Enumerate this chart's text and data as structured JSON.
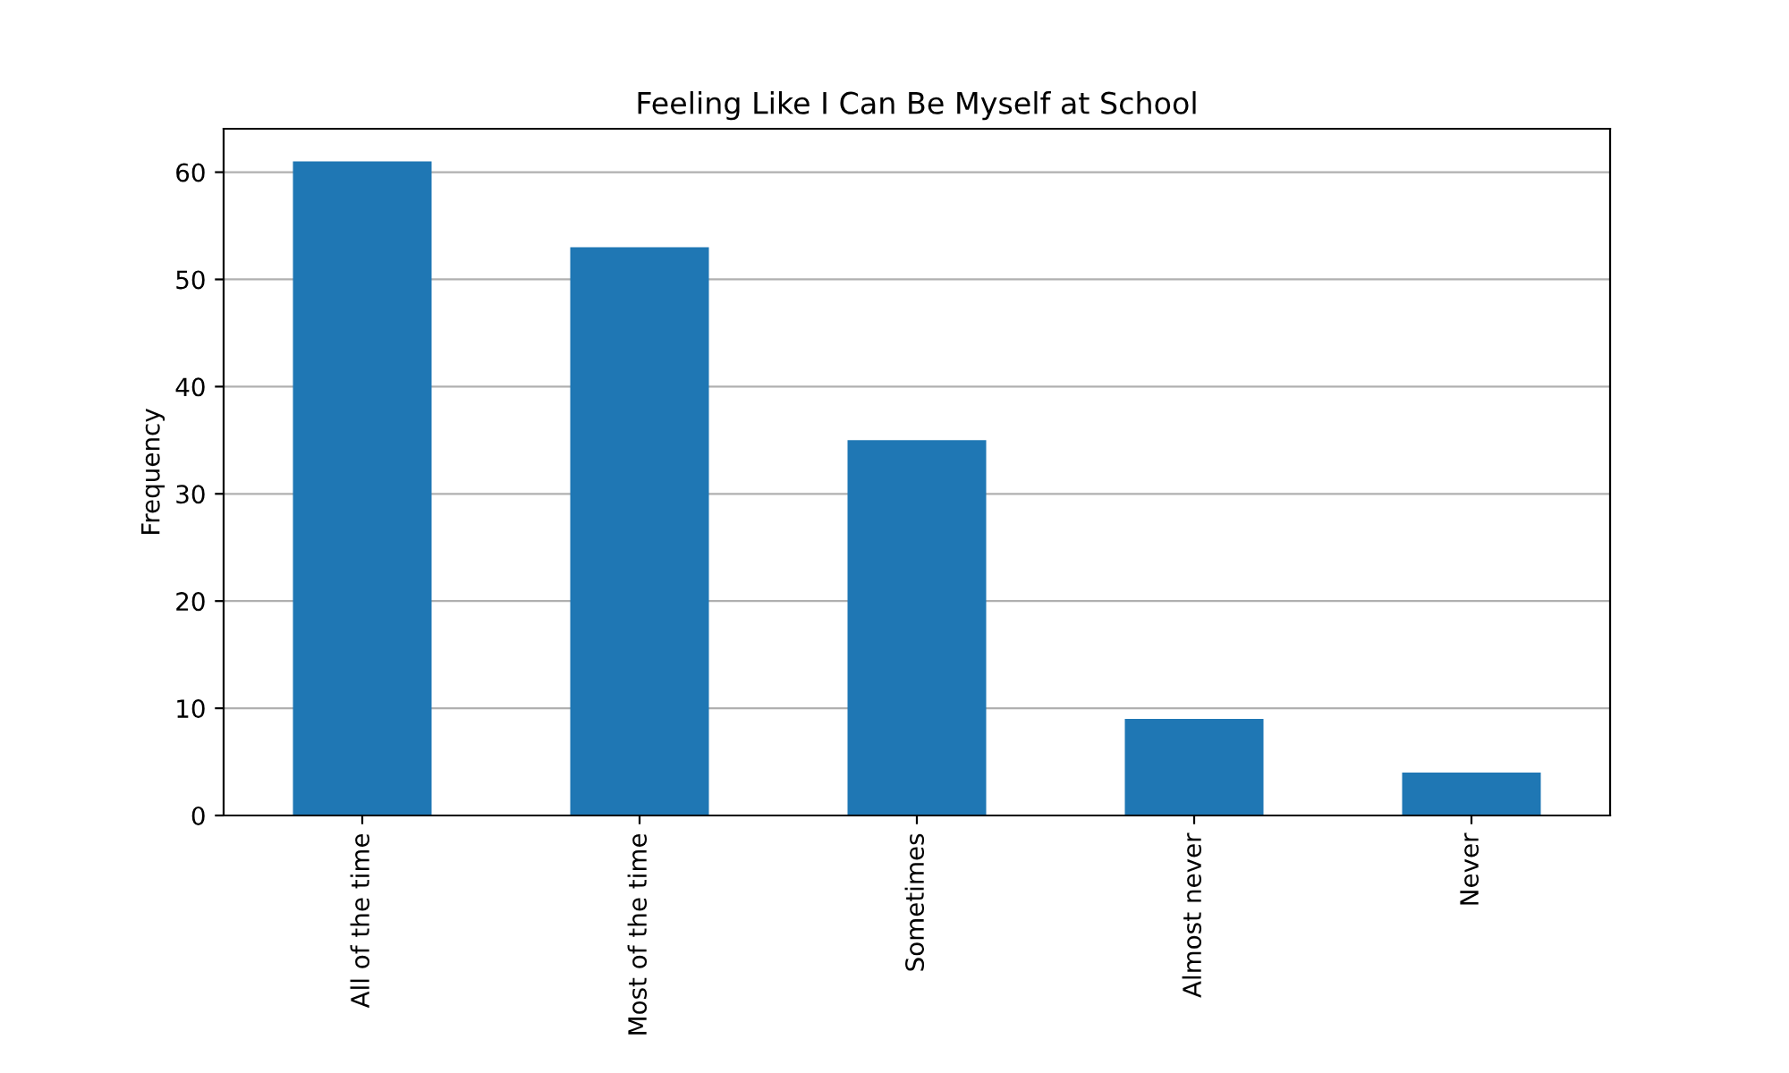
{
  "chart_data": {
    "type": "bar",
    "title": "Feeling Like I Can Be Myself at School",
    "ylabel": "Frequency",
    "categories": [
      "All of the time",
      "Most of the time",
      "Sometimes",
      "Almost never",
      "Never"
    ],
    "values": [
      61,
      53,
      35,
      9,
      4
    ],
    "color": "#1f77b4",
    "ylim": [
      0,
      64.05
    ],
    "yticks": [
      0,
      10,
      20,
      30,
      40,
      50,
      60
    ],
    "grid": "y"
  }
}
